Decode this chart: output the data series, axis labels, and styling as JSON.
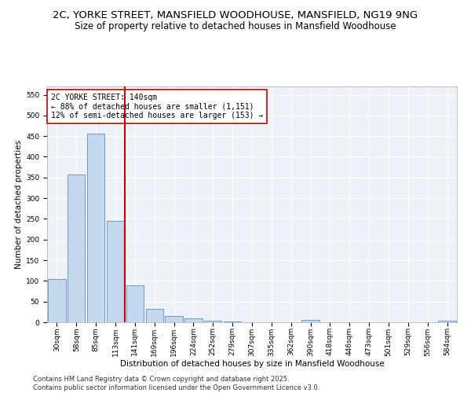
{
  "title": "2C, YORKE STREET, MANSFIELD WOODHOUSE, MANSFIELD, NG19 9NG",
  "subtitle": "Size of property relative to detached houses in Mansfield Woodhouse",
  "xlabel": "Distribution of detached houses by size in Mansfield Woodhouse",
  "ylabel": "Number of detached properties",
  "categories": [
    "30sqm",
    "58sqm",
    "85sqm",
    "113sqm",
    "141sqm",
    "169sqm",
    "196sqm",
    "224sqm",
    "252sqm",
    "279sqm",
    "307sqm",
    "335sqm",
    "362sqm",
    "390sqm",
    "418sqm",
    "446sqm",
    "473sqm",
    "501sqm",
    "529sqm",
    "556sqm",
    "584sqm"
  ],
  "values": [
    105,
    357,
    456,
    246,
    90,
    33,
    15,
    9,
    4,
    1,
    0,
    0,
    0,
    5,
    0,
    0,
    0,
    0,
    0,
    0,
    4
  ],
  "bar_color": "#c5d8ed",
  "bar_edge_color": "#5b8cc8",
  "vline_color": "#cc0000",
  "annotation_text": "2C YORKE STREET: 140sqm\n← 88% of detached houses are smaller (1,151)\n12% of semi-detached houses are larger (153) →",
  "annotation_box_color": "#ffffff",
  "annotation_box_edge": "#cc0000",
  "ylim": [
    0,
    570
  ],
  "yticks": [
    0,
    50,
    100,
    150,
    200,
    250,
    300,
    350,
    400,
    450,
    500,
    550
  ],
  "footer": "Contains HM Land Registry data © Crown copyright and database right 2025.\nContains public sector information licensed under the Open Government Licence v3.0.",
  "background_color": "#eef2f8",
  "grid_color": "#ffffff",
  "title_fontsize": 9.5,
  "subtitle_fontsize": 8.5,
  "axis_label_fontsize": 7.5,
  "tick_fontsize": 6.5,
  "annotation_fontsize": 7,
  "footer_fontsize": 6
}
